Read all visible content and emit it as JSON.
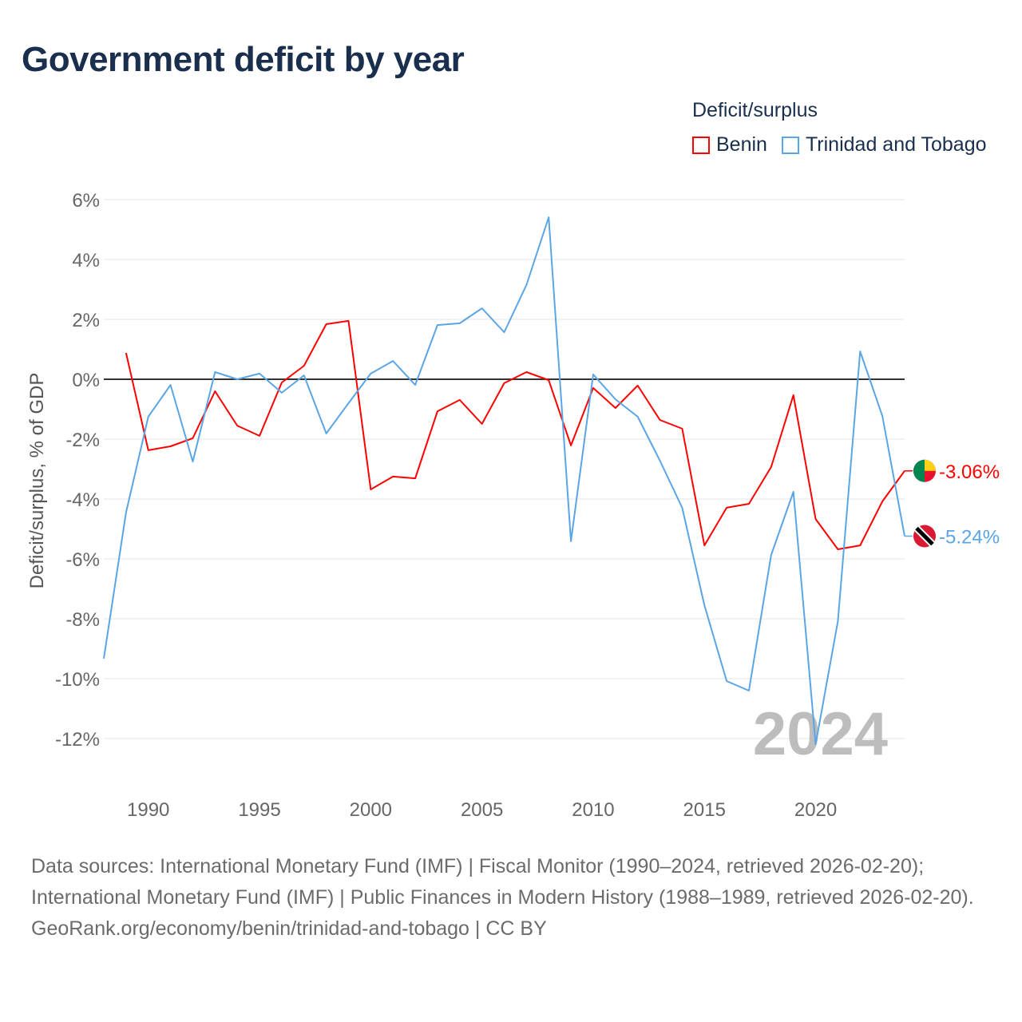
{
  "title": "Government deficit by year",
  "legend": {
    "title": "Deficit/surplus",
    "items": [
      {
        "label": "Benin",
        "color": "#ff0000"
      },
      {
        "label": "Trinidad and Tobago",
        "color": "#5aa5e6"
      }
    ]
  },
  "footer": {
    "sources": "Data sources: International Monetary Fund (IMF) | Fiscal Monitor (1990–2024, retrieved 2026-02-20); International Monetary Fund (IMF) | Public Finances in Modern History (1988–1989, retrieved 2026-02-20).",
    "credit": "GeoRank.org/economy/benin/trinidad-and-tobago | CC BY"
  },
  "chart_data": {
    "type": "line",
    "title": "Government deficit by year",
    "xlabel": "",
    "ylabel": "Deficit/surplus, % of GDP",
    "xlim": [
      1988,
      2024
    ],
    "ylim": [
      -12,
      6
    ],
    "yticks": [
      6,
      4,
      2,
      0,
      -2,
      -4,
      -6,
      -8,
      -10,
      -12
    ],
    "ytick_labels": [
      "6%",
      "4%",
      "2%",
      "0%",
      "-2%",
      "-4%",
      "-6%",
      "-8%",
      "-10%",
      "-12%"
    ],
    "xticks": [
      1990,
      1995,
      2000,
      2005,
      2010,
      2015,
      2020
    ],
    "xtick_labels": [
      "1990",
      "1995",
      "2000",
      "2005",
      "2010",
      "2015",
      "2020"
    ],
    "year_label": "2024",
    "grid": true,
    "legend_position": "top-right",
    "series": [
      {
        "name": "Benin",
        "color": "#ff0000",
        "end_label": "-3.06%",
        "start": 1989,
        "values": [
          0.88,
          -2.37,
          -2.24,
          -1.97,
          -0.4,
          -1.55,
          -1.89,
          -0.11,
          0.45,
          1.84,
          1.95,
          -3.68,
          -3.25,
          -3.31,
          -1.07,
          -0.69,
          -1.49,
          -0.13,
          0.24,
          -0.03,
          -2.21,
          -0.29,
          -0.96,
          -0.21,
          -1.36,
          -1.65,
          -5.55,
          -4.29,
          -4.16,
          -2.93,
          -0.53,
          -4.67,
          -5.68,
          -5.55,
          -4.08,
          -3.06
        ]
      },
      {
        "name": "Trinidad and Tobago",
        "color": "#5aa5e6",
        "end_label": "-5.24%",
        "start": 1988,
        "values": [
          -9.33,
          -4.45,
          -1.25,
          -0.19,
          -2.75,
          0.24,
          0.0,
          0.19,
          -0.45,
          0.13,
          -1.81,
          -0.8,
          0.19,
          0.61,
          -0.19,
          1.81,
          1.87,
          2.37,
          1.57,
          3.15,
          5.41,
          -5.41,
          0.16,
          -0.67,
          -1.25,
          -2.72,
          -4.29,
          -7.55,
          -10.08,
          -10.4,
          -5.87,
          -3.76,
          -12.19,
          -8.08,
          0.93,
          -1.23,
          -5.24
        ]
      }
    ]
  }
}
